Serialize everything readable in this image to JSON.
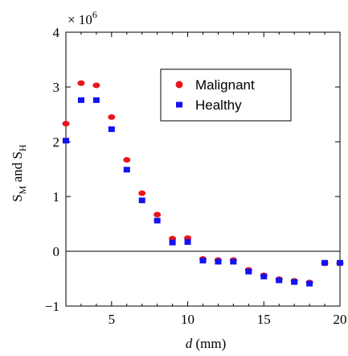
{
  "chart_data": {
    "type": "scatter",
    "xlabel_italic": "d",
    "xlabel_rest": " (mm)",
    "ylabel": {
      "s1": "S",
      "sub1": "M",
      "mid": " and ",
      "s2": "S",
      "sub2": "H"
    },
    "y_multiplier": {
      "base": "× 10",
      "exponent": "6"
    },
    "xlim": [
      2,
      20
    ],
    "ylim": [
      -1,
      4
    ],
    "xticks": [
      5,
      10,
      15,
      20
    ],
    "yticks": [
      -1,
      0,
      1,
      2,
      3,
      4
    ],
    "zero_line": true,
    "legend_position": "top-right",
    "series": [
      {
        "name": "Malignant",
        "color": "#e8141b",
        "marker": "circle",
        "x": [
          2,
          3,
          4,
          5,
          6,
          7,
          8,
          9,
          10,
          11,
          12,
          13,
          14,
          15,
          16,
          17,
          18,
          19,
          20
        ],
        "y": [
          2.33,
          3.07,
          3.03,
          2.45,
          1.67,
          1.06,
          0.67,
          0.23,
          0.24,
          -0.14,
          -0.16,
          -0.16,
          -0.34,
          -0.44,
          -0.51,
          -0.54,
          -0.57,
          -0.22,
          -0.22
        ]
      },
      {
        "name": "Healthy",
        "color": "#1212ee",
        "marker": "square",
        "x": [
          2,
          3,
          4,
          5,
          6,
          7,
          8,
          9,
          10,
          11,
          12,
          13,
          14,
          15,
          16,
          17,
          18,
          19,
          20
        ],
        "y": [
          2.02,
          2.76,
          2.76,
          2.23,
          1.49,
          0.93,
          0.56,
          0.16,
          0.17,
          -0.17,
          -0.19,
          -0.19,
          -0.37,
          -0.46,
          -0.53,
          -0.56,
          -0.59,
          -0.21,
          -0.21
        ]
      }
    ]
  }
}
